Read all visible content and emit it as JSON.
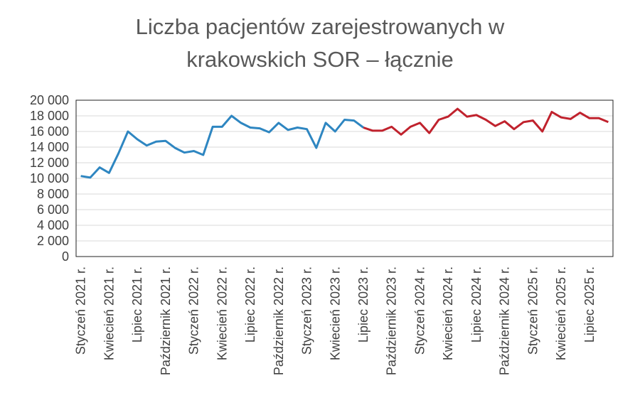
{
  "chart_data": {
    "type": "line",
    "title_lines": [
      "Liczba pacjentów zarejestrowanych w",
      "krakowskich SOR – łącznie"
    ],
    "xlabel": "",
    "ylabel": "",
    "ylim": [
      0,
      20000
    ],
    "yticks": [
      "0",
      "2 000",
      "4 000",
      "6 000",
      "8 000",
      "10 000",
      "12 000",
      "14 000",
      "16 000",
      "18 000",
      "20 000"
    ],
    "grid": true,
    "legend": "none",
    "x_labels": [
      {
        "index": 0,
        "label": "Styczeń 2021 r."
      },
      {
        "index": 3,
        "label": "Kwiecień 2021 r."
      },
      {
        "index": 6,
        "label": "Lipiec 2021 r."
      },
      {
        "index": 9,
        "label": "Październik 2021 r."
      },
      {
        "index": 12,
        "label": "Styczeń 2022 r."
      },
      {
        "index": 15,
        "label": "Kwiecień 2022 r."
      },
      {
        "index": 18,
        "label": "Lipiec 2022 r."
      },
      {
        "index": 21,
        "label": "Październik 2022 r."
      },
      {
        "index": 24,
        "label": "Styczeń 2023 r."
      },
      {
        "index": 27,
        "label": "Kwiecień 2023 r."
      },
      {
        "index": 30,
        "label": "Lipiec 2023 r."
      },
      {
        "index": 33,
        "label": "Październik 2023 r."
      },
      {
        "index": 36,
        "label": "Styczeń 2024 r."
      },
      {
        "index": 39,
        "label": "Kwiecień 2024 r."
      },
      {
        "index": 42,
        "label": "Lipiec 2024 r."
      },
      {
        "index": 45,
        "label": "Październik 2024 r."
      },
      {
        "index": 48,
        "label": "Styczeń 2025 r."
      },
      {
        "index": 51,
        "label": "Kwiecień 2025 r."
      },
      {
        "index": 54,
        "label": "Lipiec 2025 r."
      }
    ],
    "series": [
      {
        "color": "#2E86C1",
        "start_index": 0,
        "values": [
          10300,
          10100,
          11400,
          10700,
          13200,
          16000,
          15000,
          14200,
          14700,
          14800,
          13900,
          13300,
          13500,
          13000,
          16600,
          16600,
          18000,
          17100,
          16500,
          16400,
          15900,
          17100,
          16200,
          16500,
          16300,
          13900,
          17100,
          16000,
          17500,
          17400,
          16500
        ]
      },
      {
        "color": "#C0222D",
        "start_index": 30,
        "values": [
          16500,
          16100,
          16100,
          16600,
          15600,
          16600,
          17100,
          15800,
          17500,
          17900,
          18900,
          17900,
          18100,
          17500,
          16700,
          17300,
          16300,
          17200,
          17400,
          16000,
          18500,
          17800,
          17600,
          18400,
          17700,
          17700,
          17200
        ]
      }
    ]
  }
}
